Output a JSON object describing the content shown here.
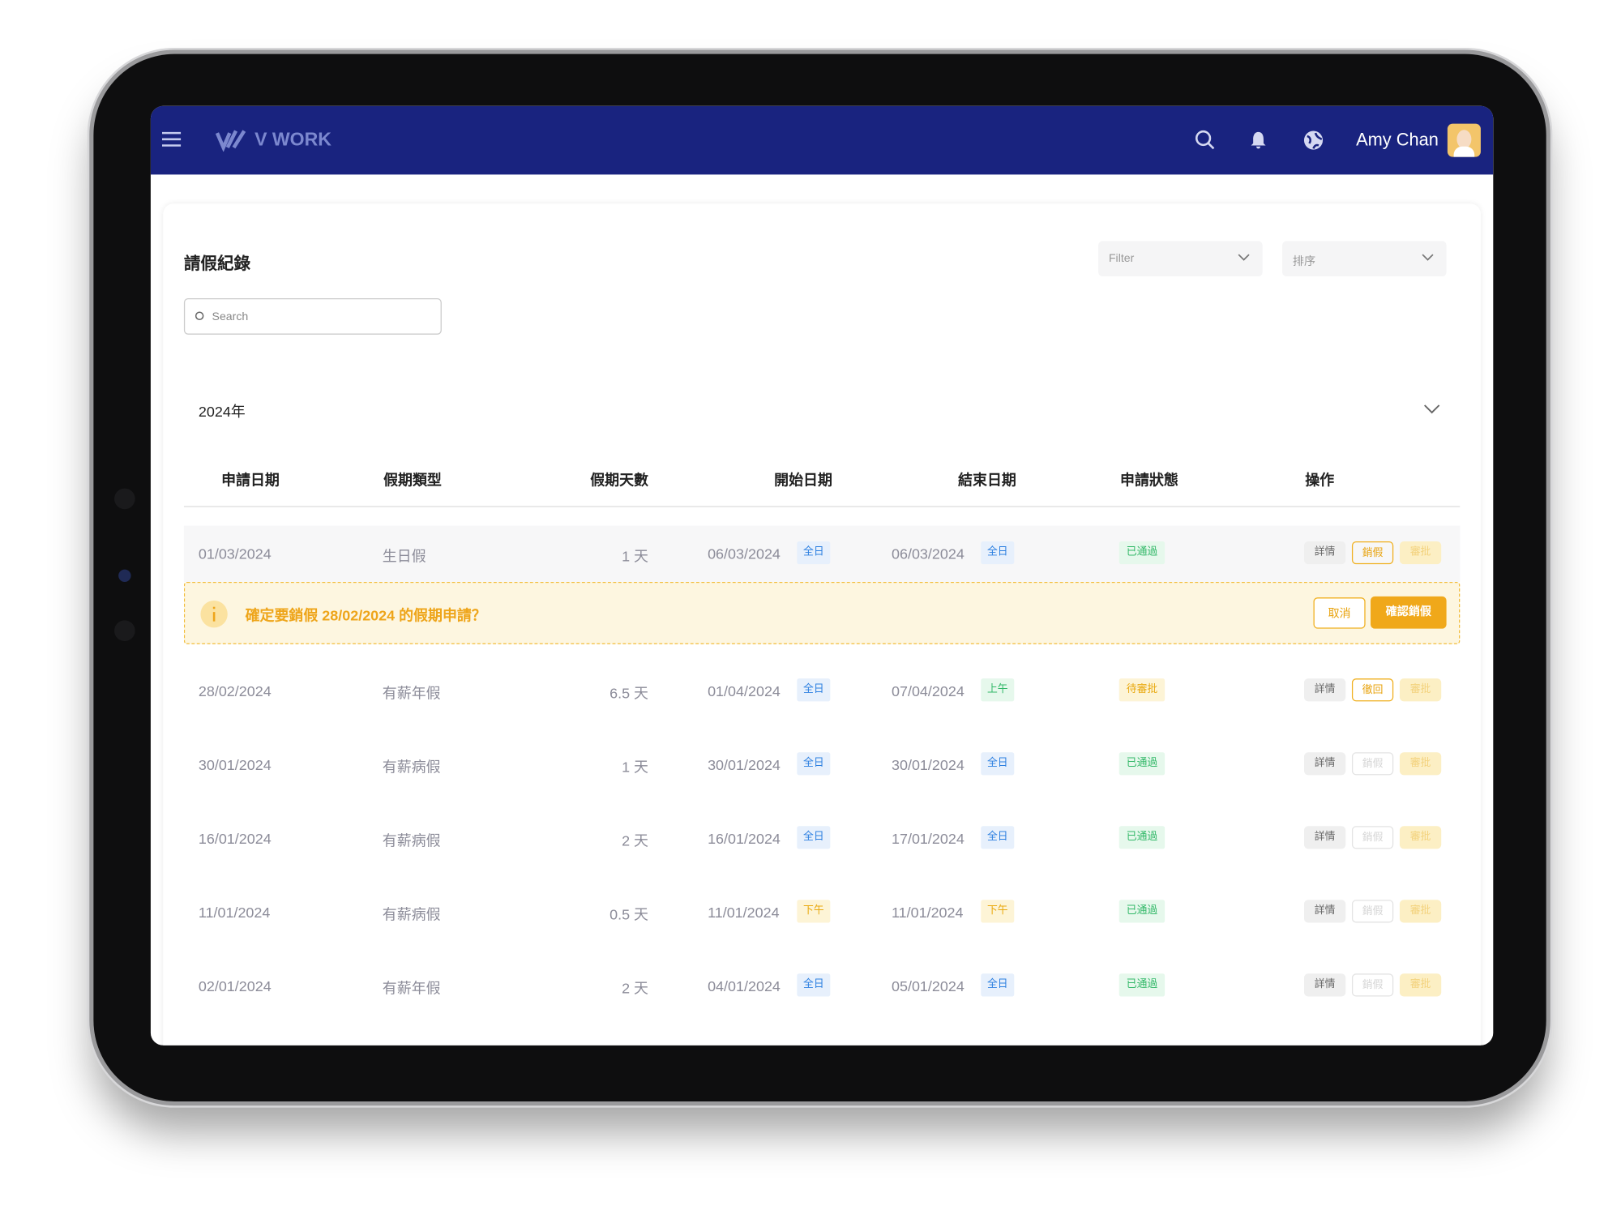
{
  "header": {
    "brand": "V WORK",
    "user": "Amy Chan"
  },
  "page": {
    "title": "請假紀錄",
    "filter": "Filter",
    "sort": "排序",
    "search": "Search",
    "year": "2024年"
  },
  "table": {
    "columns": [
      "申請日期",
      "假期類型",
      "假期天數",
      "開始日期",
      "結束日期",
      "申請狀態",
      "操作"
    ],
    "rows": [
      {
        "applied": "01/03/2024",
        "type": "生日假",
        "days": "1 天",
        "start": "06/03/2024",
        "start_period": "全日",
        "end": "06/03/2024",
        "end_period": "全日",
        "status": "已通過",
        "actions": [
          "詳情",
          "銷假",
          "審批"
        ]
      },
      {
        "applied": "28/02/2024",
        "type": "有薪年假",
        "days": "6.5 天",
        "start": "01/04/2024",
        "start_period": "全日",
        "end": "07/04/2024",
        "end_period": "上午",
        "status": "待審批",
        "actions": [
          "詳情",
          "徹回",
          "審批"
        ]
      },
      {
        "applied": "30/01/2024",
        "type": "有薪病假",
        "days": "1 天",
        "start": "30/01/2024",
        "start_period": "全日",
        "end": "30/01/2024",
        "end_period": "全日",
        "status": "已通過",
        "actions": [
          "詳情",
          "銷假",
          "審批"
        ]
      },
      {
        "applied": "16/01/2024",
        "type": "有薪病假",
        "days": "2 天",
        "start": "16/01/2024",
        "start_period": "全日",
        "end": "17/01/2024",
        "end_period": "全日",
        "status": "已通過",
        "actions": [
          "詳情",
          "銷假",
          "審批"
        ]
      },
      {
        "applied": "11/01/2024",
        "type": "有薪病假",
        "days": "0.5 天",
        "start": "11/01/2024",
        "start_period": "下午",
        "end": "11/01/2024",
        "end_period": "下午",
        "status": "已通過",
        "actions": [
          "詳情",
          "銷假",
          "審批"
        ]
      },
      {
        "applied": "02/01/2024",
        "type": "有薪年假",
        "days": "2 天",
        "start": "04/01/2024",
        "start_period": "全日",
        "end": "05/01/2024",
        "end_period": "全日",
        "status": "已通過",
        "actions": [
          "詳情",
          "銷假",
          "審批"
        ]
      }
    ]
  },
  "confirm": {
    "message": "確定要銷假 28/02/2024 的假期申請？",
    "cancel": "取消",
    "ok": "確認銷假"
  }
}
